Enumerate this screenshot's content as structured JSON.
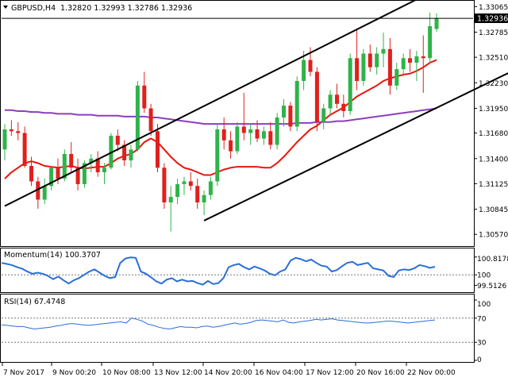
{
  "header": {
    "symbol": "GBPUSD,H4",
    "ohlc": "1.32820 1.32993 1.32786 1.32936"
  },
  "current_price_label": "1.32936",
  "momentum_header": "Momentum(14) 100.3707",
  "rsi_header": "RSI(14) 67.4748",
  "time_labels": [
    "7 Nov 2017",
    "9 Nov 00:20",
    "10 Nov 08:00",
    "13 Nov 12:00",
    "14 Nov 20:00",
    "16 Nov 04:00",
    "17 Nov 12:00",
    "20 Nov 16:00",
    "22 Nov 00:00"
  ],
  "colors": {
    "bull": "#2fb34a",
    "bear": "#e0201c",
    "sma_fast": "#e8160c",
    "sma_slow": "#8a3fbf",
    "indicator": "#2a6ed8",
    "channel": "#000000"
  },
  "chart_data": [
    {
      "type": "candlestick",
      "title": "GBPUSD,H4",
      "y_ticks": [
        "1.33065",
        "1.32785",
        "1.32510",
        "1.32230",
        "1.31950",
        "1.31680",
        "1.31400",
        "1.31125",
        "1.30845",
        "1.30570"
      ],
      "ylim": [
        1.3045,
        1.3312
      ],
      "current_price": 1.32936,
      "candles": [
        [
          1.315,
          1.3178,
          1.3138,
          1.3172
        ],
        [
          1.3172,
          1.3182,
          1.3165,
          1.317
        ],
        [
          1.317,
          1.318,
          1.316,
          1.3168
        ],
        [
          1.3168,
          1.3175,
          1.313,
          1.3132
        ],
        [
          1.3132,
          1.3142,
          1.311,
          1.3115
        ],
        [
          1.3115,
          1.312,
          1.3085,
          1.3095
        ],
        [
          1.3095,
          1.3118,
          1.309,
          1.311
        ],
        [
          1.311,
          1.3132,
          1.3105,
          1.313
        ],
        [
          1.313,
          1.314,
          1.3112,
          1.3118
        ],
        [
          1.3118,
          1.315,
          1.3115,
          1.3145
        ],
        [
          1.3145,
          1.3158,
          1.3125,
          1.313
        ],
        [
          1.313,
          1.314,
          1.3105,
          1.3112
        ],
        [
          1.3112,
          1.3138,
          1.3108,
          1.3135
        ],
        [
          1.3135,
          1.3145,
          1.3125,
          1.314
        ],
        [
          1.314,
          1.3148,
          1.312,
          1.3125
        ],
        [
          1.3125,
          1.3135,
          1.3112,
          1.313
        ],
        [
          1.313,
          1.3168,
          1.3128,
          1.3165
        ],
        [
          1.3165,
          1.3172,
          1.3148,
          1.3155
        ],
        [
          1.3155,
          1.316,
          1.3132,
          1.3138
        ],
        [
          1.3138,
          1.3155,
          1.313,
          1.315
        ],
        [
          1.315,
          1.3225,
          1.3148,
          1.322
        ],
        [
          1.322,
          1.3235,
          1.319,
          1.3195
        ],
        [
          1.3195,
          1.32,
          1.3165,
          1.317
        ],
        [
          1.317,
          1.3178,
          1.3125,
          1.313
        ],
        [
          1.313,
          1.3135,
          1.3085,
          1.3092
        ],
        [
          1.3092,
          1.311,
          1.306,
          1.3098
        ],
        [
          1.3098,
          1.3118,
          1.309,
          1.3112
        ],
        [
          1.3112,
          1.312,
          1.31,
          1.3115
        ],
        [
          1.3115,
          1.3125,
          1.3105,
          1.311
        ],
        [
          1.311,
          1.3118,
          1.3085,
          1.3092
        ],
        [
          1.3092,
          1.3105,
          1.3078,
          1.31
        ],
        [
          1.31,
          1.312,
          1.3095,
          1.3115
        ],
        [
          1.3115,
          1.3178,
          1.311,
          1.3172
        ],
        [
          1.3172,
          1.3185,
          1.315,
          1.316
        ],
        [
          1.316,
          1.317,
          1.314,
          1.3148
        ],
        [
          1.3148,
          1.318,
          1.3145,
          1.3175
        ],
        [
          1.3175,
          1.3212,
          1.316,
          1.3168
        ],
        [
          1.3168,
          1.3178,
          1.3155,
          1.3172
        ],
        [
          1.3172,
          1.3182,
          1.3158,
          1.3162
        ],
        [
          1.3162,
          1.3175,
          1.3155,
          1.317
        ],
        [
          1.317,
          1.318,
          1.315,
          1.3155
        ],
        [
          1.3155,
          1.319,
          1.315,
          1.3185
        ],
        [
          1.3185,
          1.3205,
          1.3175,
          1.3198
        ],
        [
          1.3198,
          1.3202,
          1.317,
          1.3175
        ],
        [
          1.3175,
          1.323,
          1.317,
          1.3225
        ],
        [
          1.3225,
          1.3258,
          1.3215,
          1.3248
        ],
        [
          1.3248,
          1.3262,
          1.323,
          1.3235
        ],
        [
          1.3235,
          1.324,
          1.317,
          1.318
        ],
        [
          1.318,
          1.32,
          1.3172,
          1.3195
        ],
        [
          1.3195,
          1.3215,
          1.3188,
          1.321
        ],
        [
          1.321,
          1.3222,
          1.3195,
          1.32
        ],
        [
          1.32,
          1.321,
          1.3185,
          1.3192
        ],
        [
          1.3192,
          1.3255,
          1.3188,
          1.325
        ],
        [
          1.325,
          1.3282,
          1.3215,
          1.3225
        ],
        [
          1.3225,
          1.326,
          1.322,
          1.3255
        ],
        [
          1.3255,
          1.3265,
          1.3235,
          1.324
        ],
        [
          1.324,
          1.3262,
          1.3232,
          1.3255
        ],
        [
          1.3255,
          1.3278,
          1.324,
          1.326
        ],
        [
          1.326,
          1.3272,
          1.321,
          1.322
        ],
        [
          1.322,
          1.3245,
          1.3215,
          1.3238
        ],
        [
          1.3238,
          1.3255,
          1.323,
          1.325
        ],
        [
          1.325,
          1.326,
          1.3235,
          1.3245
        ],
        [
          1.3245,
          1.3258,
          1.3225,
          1.3252
        ],
        [
          1.3252,
          1.3275,
          1.3212,
          1.325
        ],
        [
          1.325,
          1.33,
          1.3245,
          1.3285
        ],
        [
          1.3282,
          1.3299,
          1.3279,
          1.3294
        ]
      ],
      "overlays": [
        {
          "values": [
            1.3118,
            1.3125,
            1.313,
            1.3135,
            1.3137,
            1.3135,
            1.3132,
            1.3131,
            1.313,
            1.3131,
            1.3132,
            1.313,
            1.3129,
            1.313,
            1.3131,
            1.3131,
            1.3135,
            1.314,
            1.3143,
            1.3145,
            1.315,
            1.3158,
            1.3162,
            1.3158,
            1.315,
            1.3142,
            1.3135,
            1.313,
            1.3128,
            1.3125,
            1.3122,
            1.3122,
            1.3125,
            1.3128,
            1.313,
            1.3131,
            1.3131,
            1.3131,
            1.3131,
            1.313,
            1.313,
            1.3135,
            1.3142,
            1.315,
            1.3158,
            1.3165,
            1.3172,
            1.3176,
            1.3182,
            1.3188,
            1.3192,
            1.3196,
            1.3202,
            1.3208,
            1.3212,
            1.3216,
            1.322,
            1.3225,
            1.3228,
            1.323,
            1.3232,
            1.3233,
            1.3236,
            1.324,
            1.3245,
            1.3248
          ]
        },
        {
          "values": [
            1.3193,
            1.3193,
            1.3192,
            1.3192,
            1.3191,
            1.3191,
            1.319,
            1.319,
            1.3189,
            1.3189,
            1.3189,
            1.3188,
            1.3188,
            1.3188,
            1.3187,
            1.3187,
            1.3187,
            1.3187,
            1.3186,
            1.3186,
            1.3186,
            1.3186,
            1.3185,
            1.3185,
            1.3184,
            1.3183,
            1.3182,
            1.3181,
            1.318,
            1.3179,
            1.3178,
            1.3178,
            1.3178,
            1.3178,
            1.3178,
            1.3178,
            1.3178,
            1.3178,
            1.3178,
            1.3178,
            1.3178,
            1.3178,
            1.3178,
            1.3178,
            1.3179,
            1.3179,
            1.3179,
            1.318,
            1.318,
            1.318,
            1.3181,
            1.3181,
            1.3182,
            1.3183,
            1.3184,
            1.3185,
            1.3186,
            1.3187,
            1.3188,
            1.3189,
            1.319,
            1.3191,
            1.3192,
            1.3193,
            1.3194,
            1.3195
          ]
        }
      ],
      "channel_lines": [
        {
          "from": [
            0,
            1.3088
          ],
          "to": [
            63,
            1.3318
          ]
        },
        {
          "from": [
            30,
            1.3072
          ],
          "to": [
            79,
            1.3245
          ]
        }
      ]
    },
    {
      "type": "line",
      "title": "Momentum(14) 100.3707",
      "y_ticks": [
        "100.8178",
        "100",
        "99.5126"
      ],
      "ylim": [
        99.28,
        100.92
      ],
      "levels": [
        100
      ],
      "values": [
        100.55,
        100.5,
        100.45,
        100.35,
        100.28,
        100.15,
        100.05,
        100.1,
        100.05,
        99.95,
        99.8,
        99.92,
        99.75,
        99.6,
        99.75,
        99.85,
        100.0,
        100.15,
        100.25,
        100.1,
        99.95,
        99.85,
        99.9,
        100.55,
        100.75,
        100.8,
        100.78,
        100.15,
        100.05,
        99.88,
        99.7,
        99.6,
        99.78,
        99.85,
        99.7,
        99.78,
        99.7,
        99.72,
        99.62,
        99.55,
        99.72,
        99.58,
        99.62,
        99.85,
        100.35,
        100.45,
        100.5,
        100.35,
        100.25,
        100.38,
        100.3,
        100.2,
        100.05,
        99.98,
        100.15,
        100.25,
        100.65,
        100.78,
        100.72,
        100.62,
        100.7,
        100.55,
        100.42,
        100.38,
        100.15,
        100.22,
        100.4,
        100.55,
        100.6,
        100.45,
        100.5,
        100.55,
        100.3,
        100.25,
        100.2,
        99.95,
        99.9,
        100.2,
        100.25,
        100.22,
        100.3,
        100.45,
        100.4,
        100.32,
        100.37
      ]
    },
    {
      "type": "line",
      "title": "RSI(14) 67.4748",
      "y_ticks": [
        "100",
        "70",
        "30",
        "0"
      ],
      "ylim": [
        0,
        100
      ],
      "levels": [
        70,
        30
      ],
      "values": [
        59,
        58,
        57,
        56,
        56,
        54,
        52,
        53,
        54,
        55,
        57,
        58,
        60,
        61,
        60,
        59,
        58,
        59,
        60,
        61,
        62,
        63,
        64,
        62,
        70,
        68,
        65,
        60,
        58,
        55,
        53,
        52,
        54,
        56,
        55,
        55,
        54,
        56,
        57,
        55,
        56,
        58,
        60,
        62,
        60,
        61,
        63,
        66,
        67,
        66,
        65,
        64,
        67,
        63,
        62,
        64,
        65,
        66,
        68,
        67,
        68,
        69,
        67,
        66,
        65,
        64,
        63,
        62,
        62,
        63,
        64,
        65,
        65,
        64,
        63,
        62,
        63,
        64,
        65,
        66,
        67
      ]
    }
  ]
}
